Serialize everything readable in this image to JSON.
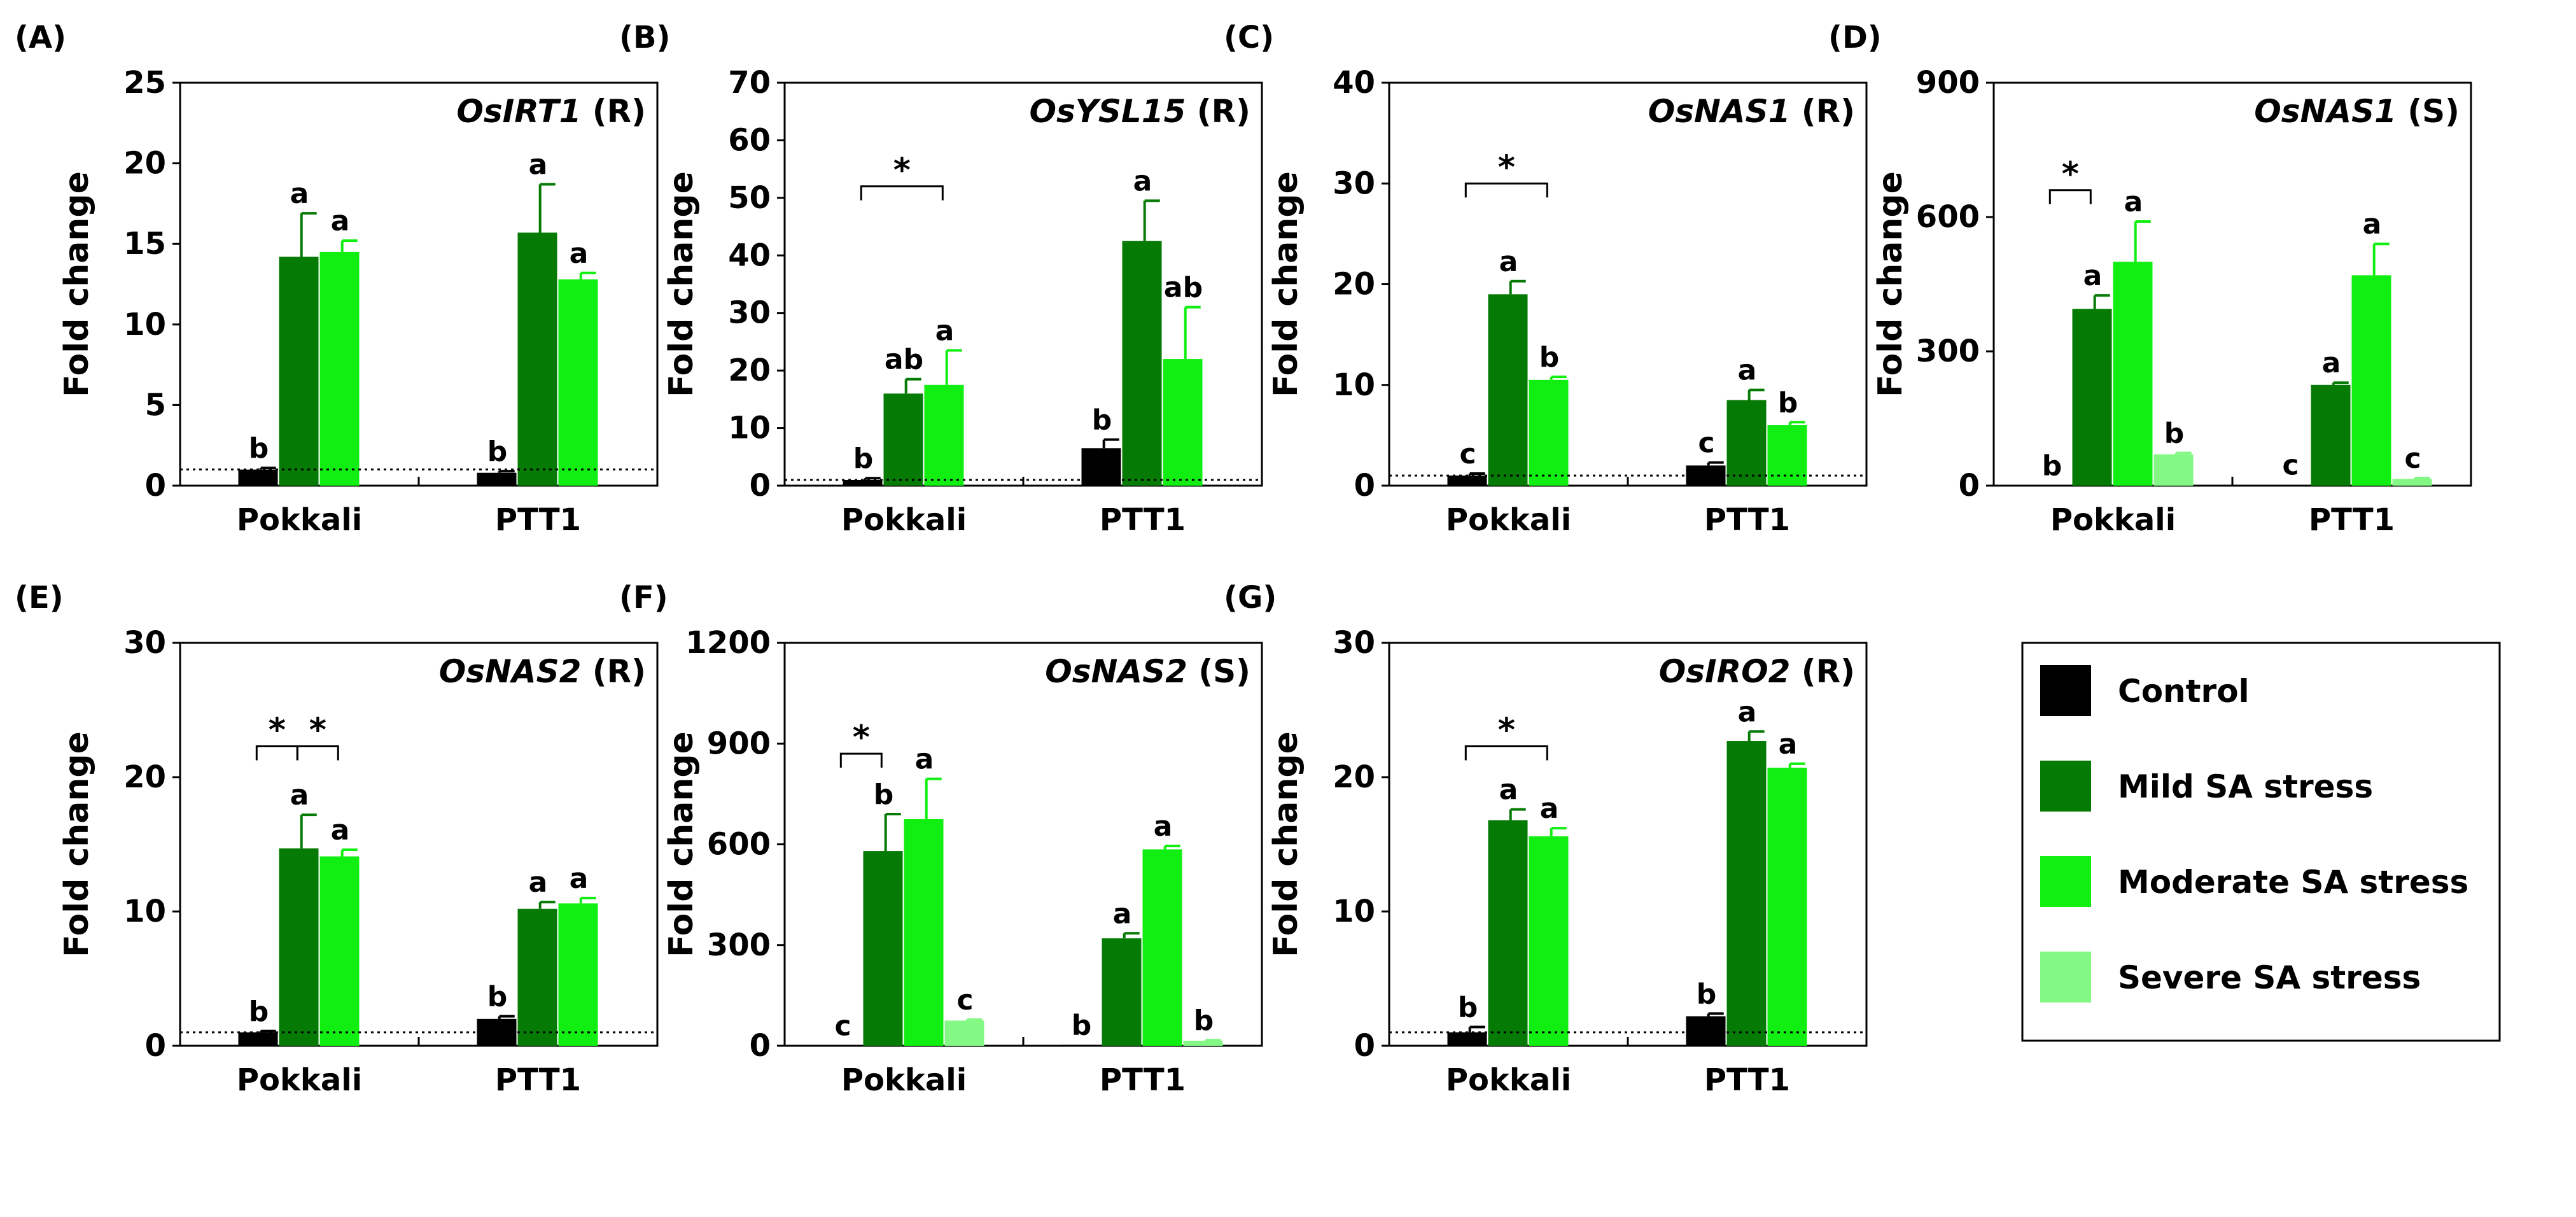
{
  "colors": {
    "control": "#000000",
    "mild": "#057a05",
    "moderate": "#11ee11",
    "severe": "#84f884",
    "axis": "#000000"
  },
  "legend": {
    "items": [
      {
        "key": "control",
        "label": "Control"
      },
      {
        "key": "mild",
        "label": "Mild SA stress"
      },
      {
        "key": "moderate",
        "label": "Moderate SA stress"
      },
      {
        "key": "severe",
        "label": "Severe SA stress"
      }
    ]
  },
  "chart_data": [
    {
      "type": "bar",
      "letter": "(A)",
      "title_gene": "OsIRT1",
      "title_suffix": " (R)",
      "ylabel": "Fold change",
      "ylim": [
        0,
        25
      ],
      "yticks": [
        0,
        5,
        10,
        15,
        20,
        25
      ],
      "categories": [
        "Pokkali",
        "PTT1"
      ],
      "baseline": 1,
      "series": [
        {
          "key": "control",
          "values": [
            1.0,
            0.8
          ],
          "errors": [
            0.1,
            0.1
          ],
          "letters": [
            "b",
            "b"
          ]
        },
        {
          "key": "mild",
          "values": [
            14.2,
            15.7
          ],
          "errors": [
            2.7,
            3.0
          ],
          "letters": [
            "a",
            "a"
          ]
        },
        {
          "key": "moderate",
          "values": [
            14.5,
            12.8
          ],
          "errors": [
            0.7,
            0.4
          ],
          "letters": [
            "a",
            "a"
          ]
        }
      ],
      "brackets": []
    },
    {
      "type": "bar",
      "letter": "(B)",
      "title_gene": "OsYSL15",
      "title_suffix": " (R)",
      "ylabel": "Fold change",
      "ylim": [
        0,
        70
      ],
      "yticks": [
        0,
        10,
        20,
        30,
        40,
        50,
        60,
        70
      ],
      "categories": [
        "Pokkali",
        "PTT1"
      ],
      "baseline": 1,
      "series": [
        {
          "key": "control",
          "values": [
            1.0,
            6.5
          ],
          "errors": [
            0.3,
            1.5
          ],
          "letters": [
            "b",
            "b"
          ]
        },
        {
          "key": "mild",
          "values": [
            16.0,
            42.5
          ],
          "errors": [
            2.5,
            7.0
          ],
          "letters": [
            "ab",
            "a"
          ]
        },
        {
          "key": "moderate",
          "values": [
            17.5,
            22.0
          ],
          "errors": [
            6.0,
            9.0
          ],
          "letters": [
            "a",
            "ab"
          ]
        }
      ],
      "brackets": [
        {
          "from": 0,
          "to": 2,
          "group": 0,
          "level": 52,
          "label": "*"
        }
      ]
    },
    {
      "type": "bar",
      "letter": "(C)",
      "title_gene": "OsNAS1",
      "title_suffix": " (R)",
      "ylabel": "Fold change",
      "ylim": [
        0,
        40
      ],
      "yticks": [
        0,
        10,
        20,
        30,
        40
      ],
      "categories": [
        "Pokkali",
        "PTT1"
      ],
      "baseline": 1,
      "series": [
        {
          "key": "control",
          "values": [
            1.0,
            2.0
          ],
          "errors": [
            0.2,
            0.3
          ],
          "letters": [
            "c",
            "c"
          ]
        },
        {
          "key": "mild",
          "values": [
            19.0,
            8.5
          ],
          "errors": [
            1.3,
            1.0
          ],
          "letters": [
            "a",
            "a"
          ]
        },
        {
          "key": "moderate",
          "values": [
            10.5,
            6.0
          ],
          "errors": [
            0.3,
            0.3
          ],
          "letters": [
            "b",
            "b"
          ]
        }
      ],
      "brackets": [
        {
          "from": 0,
          "to": 2,
          "group": 0,
          "level": 30,
          "label": "*"
        }
      ]
    },
    {
      "type": "bar",
      "letter": "(D)",
      "title_gene": "OsNAS1",
      "title_suffix": " (S)",
      "ylabel": "Fold change",
      "ylim": [
        0,
        900
      ],
      "yticks": [
        0,
        300,
        600,
        900
      ],
      "categories": [
        "Pokkali",
        "PTT1"
      ],
      "baseline": null,
      "series": [
        {
          "key": "control",
          "values": [
            1,
            2
          ],
          "errors": [
            0,
            0
          ],
          "letters": [
            "b",
            "c"
          ]
        },
        {
          "key": "mild",
          "values": [
            395,
            225
          ],
          "errors": [
            30,
            5
          ],
          "letters": [
            "a",
            "a"
          ]
        },
        {
          "key": "moderate",
          "values": [
            500,
            470
          ],
          "errors": [
            90,
            70
          ],
          "letters": [
            "a",
            "a"
          ]
        },
        {
          "key": "severe",
          "values": [
            70,
            15
          ],
          "errors": [
            3,
            2
          ],
          "letters": [
            "b",
            "c"
          ]
        }
      ],
      "brackets": [
        {
          "from": 0,
          "to": 1,
          "group": 0,
          "level": 660,
          "label": "*"
        }
      ]
    },
    {
      "type": "bar",
      "letter": "(E)",
      "title_gene": "OsNAS2",
      "title_suffix": " (R)",
      "ylabel": "Fold change",
      "ylim": [
        0,
        30
      ],
      "yticks": [
        0,
        10,
        20,
        30
      ],
      "categories": [
        "Pokkali",
        "PTT1"
      ],
      "baseline": 1,
      "series": [
        {
          "key": "control",
          "values": [
            1.0,
            2.0
          ],
          "errors": [
            0.1,
            0.2
          ],
          "letters": [
            "b",
            "b"
          ]
        },
        {
          "key": "mild",
          "values": [
            14.7,
            10.2
          ],
          "errors": [
            2.5,
            0.5
          ],
          "letters": [
            "a",
            "a"
          ]
        },
        {
          "key": "moderate",
          "values": [
            14.1,
            10.6
          ],
          "errors": [
            0.5,
            0.4
          ],
          "letters": [
            "a",
            "a"
          ]
        }
      ],
      "brackets": [
        {
          "from": 0,
          "to": 1,
          "group": 0,
          "level": 22.3,
          "label": "*"
        },
        {
          "from": 1,
          "to": 2,
          "group": 0,
          "level": 22.3,
          "label": "*"
        }
      ]
    },
    {
      "type": "bar",
      "letter": "(F)",
      "title_gene": "OsNAS2",
      "title_suffix": " (S)",
      "ylabel": "Fold change",
      "ylim": [
        0,
        1200
      ],
      "yticks": [
        0,
        300,
        600,
        900,
        1200
      ],
      "categories": [
        "Pokkali",
        "PTT1"
      ],
      "baseline": null,
      "series": [
        {
          "key": "control",
          "values": [
            1,
            3
          ],
          "errors": [
            0,
            0
          ],
          "letters": [
            "c",
            "b"
          ]
        },
        {
          "key": "mild",
          "values": [
            580,
            320
          ],
          "errors": [
            110,
            15
          ],
          "letters": [
            "b",
            "a"
          ]
        },
        {
          "key": "moderate",
          "values": [
            675,
            585
          ],
          "errors": [
            120,
            10
          ],
          "letters": [
            "a",
            "a"
          ]
        },
        {
          "key": "severe",
          "values": [
            75,
            15
          ],
          "errors": [
            3,
            2
          ],
          "letters": [
            "c",
            "b"
          ]
        }
      ],
      "brackets": [
        {
          "from": 0,
          "to": 1,
          "group": 0,
          "level": 870,
          "label": "*"
        }
      ]
    },
    {
      "type": "bar",
      "letter": "(G)",
      "title_gene": "OsIRO2",
      "title_suffix": " (R)",
      "ylabel": "Fold change",
      "ylim": [
        0,
        30
      ],
      "yticks": [
        0,
        10,
        20,
        30
      ],
      "categories": [
        "Pokkali",
        "PTT1"
      ],
      "baseline": 1,
      "series": [
        {
          "key": "control",
          "values": [
            1.0,
            2.2
          ],
          "errors": [
            0.4,
            0.2
          ],
          "letters": [
            "b",
            "b"
          ]
        },
        {
          "key": "mild",
          "values": [
            16.8,
            22.7
          ],
          "errors": [
            0.8,
            0.7
          ],
          "letters": [
            "a",
            "a"
          ]
        },
        {
          "key": "moderate",
          "values": [
            15.6,
            20.7
          ],
          "errors": [
            0.6,
            0.3
          ],
          "letters": [
            "a",
            "a"
          ]
        }
      ],
      "brackets": [
        {
          "from": 0,
          "to": 2,
          "group": 0,
          "level": 22.3,
          "label": "*"
        }
      ]
    }
  ]
}
